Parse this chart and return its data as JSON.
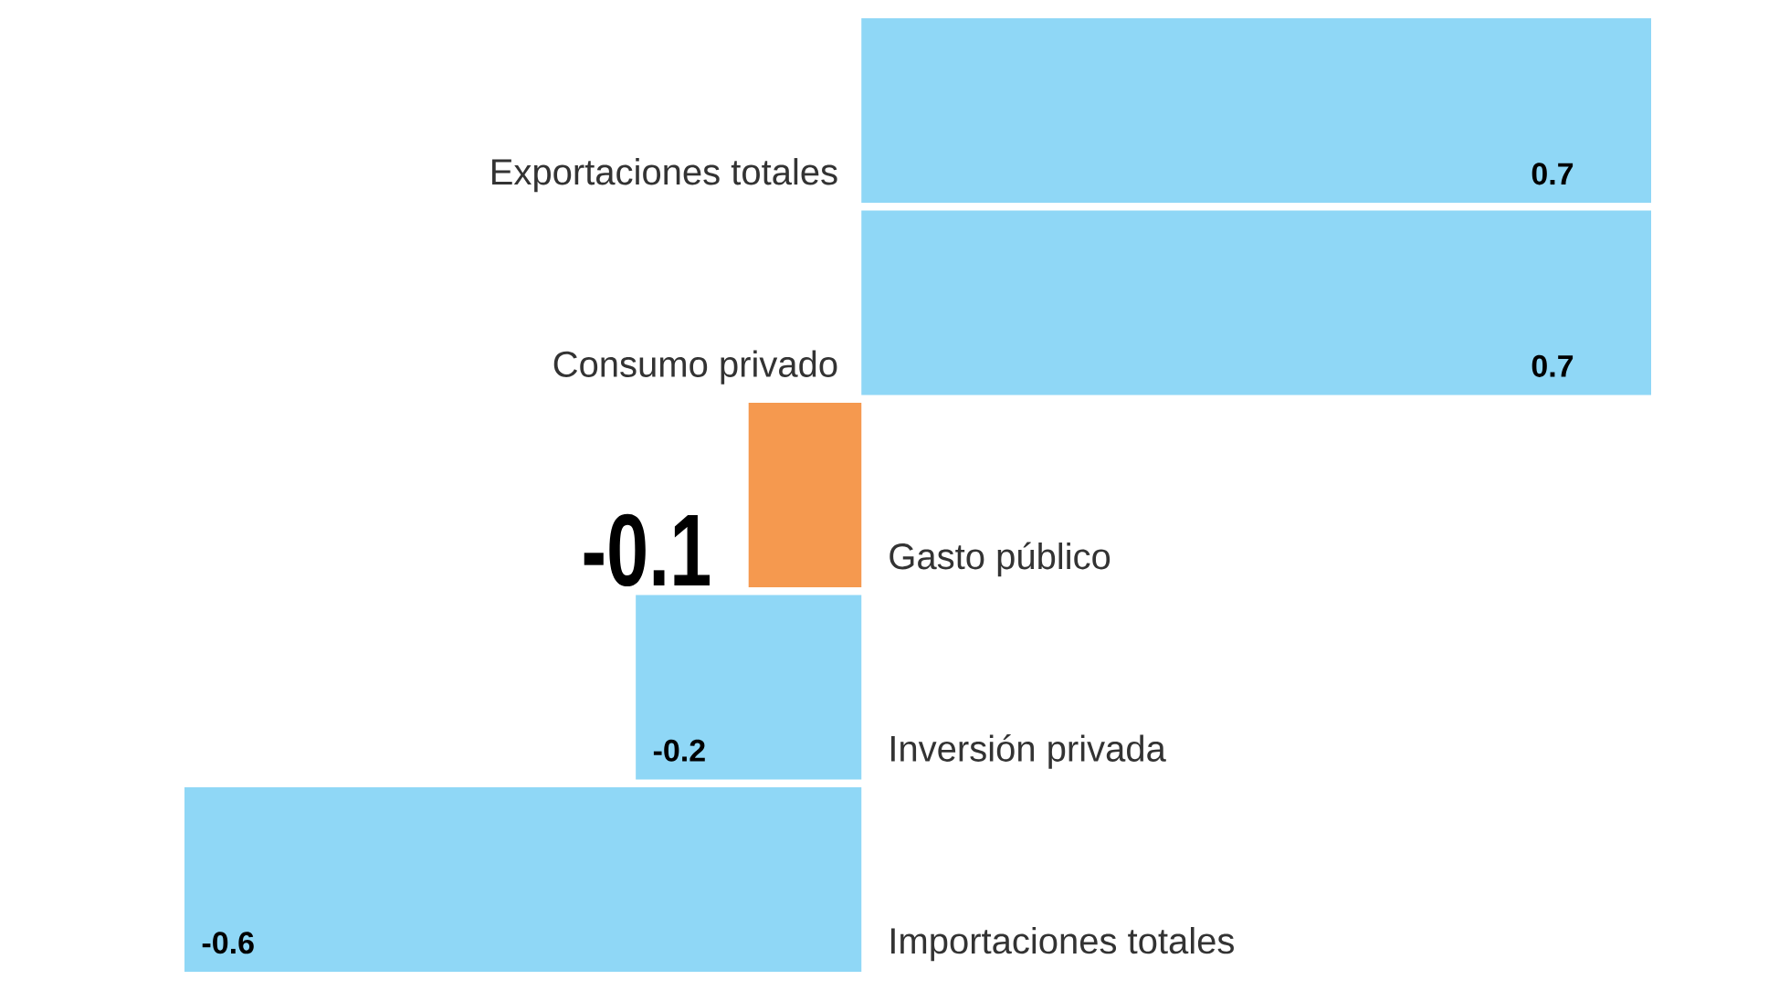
{
  "chart_data": {
    "type": "bar",
    "orientation": "horizontal",
    "categories": [
      "Exportaciones totales",
      "Consumo privado",
      "Gasto público",
      "Inversión privada",
      "Importaciones totales"
    ],
    "values": [
      0.7,
      0.7,
      -0.1,
      -0.2,
      -0.6
    ],
    "colors": [
      "#8fd7f6",
      "#8fd7f6",
      "#f5994f",
      "#8fd7f6",
      "#8fd7f6"
    ],
    "data_labels": true,
    "tick_labels": "y"
  }
}
